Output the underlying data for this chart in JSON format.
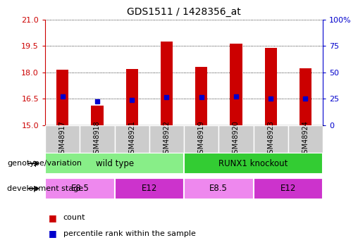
{
  "title": "GDS1511 / 1428356_at",
  "samples": [
    "GSM48917",
    "GSM48918",
    "GSM48921",
    "GSM48922",
    "GSM48919",
    "GSM48920",
    "GSM48923",
    "GSM48924"
  ],
  "count_values": [
    18.17,
    16.1,
    18.2,
    19.75,
    18.3,
    19.65,
    19.4,
    18.25
  ],
  "percentile_values": [
    16.65,
    16.35,
    16.45,
    16.6,
    16.6,
    16.65,
    16.5,
    16.5
  ],
  "ylim_left": [
    15,
    21
  ],
  "ylim_right": [
    0,
    100
  ],
  "yticks_left": [
    15,
    16.5,
    18,
    19.5,
    21
  ],
  "yticks_right": [
    0,
    25,
    50,
    75,
    100
  ],
  "ytick_labels_right": [
    "0",
    "25",
    "50",
    "75",
    "100%"
  ],
  "bar_color": "#cc0000",
  "dot_color": "#0000cc",
  "bar_bottom": 15,
  "genotype_groups": [
    {
      "label": "wild type",
      "start": 0,
      "end": 4,
      "color": "#88ee88"
    },
    {
      "label": "RUNX1 knockout",
      "start": 4,
      "end": 8,
      "color": "#33cc33"
    }
  ],
  "stage_groups": [
    {
      "label": "E8.5",
      "start": 0,
      "end": 2,
      "color": "#ee88ee"
    },
    {
      "label": "E12",
      "start": 2,
      "end": 4,
      "color": "#cc33cc"
    },
    {
      "label": "E8.5",
      "start": 4,
      "end": 6,
      "color": "#ee88ee"
    },
    {
      "label": "E12",
      "start": 6,
      "end": 8,
      "color": "#cc33cc"
    }
  ],
  "legend_count_color": "#cc0000",
  "legend_percentile_color": "#0000cc",
  "label_genotype": "genotype/variation",
  "label_stage": "development stage",
  "left_tick_color": "#cc0000",
  "right_tick_color": "#0000cc",
  "sample_box_color": "#cccccc",
  "bar_width": 0.35
}
